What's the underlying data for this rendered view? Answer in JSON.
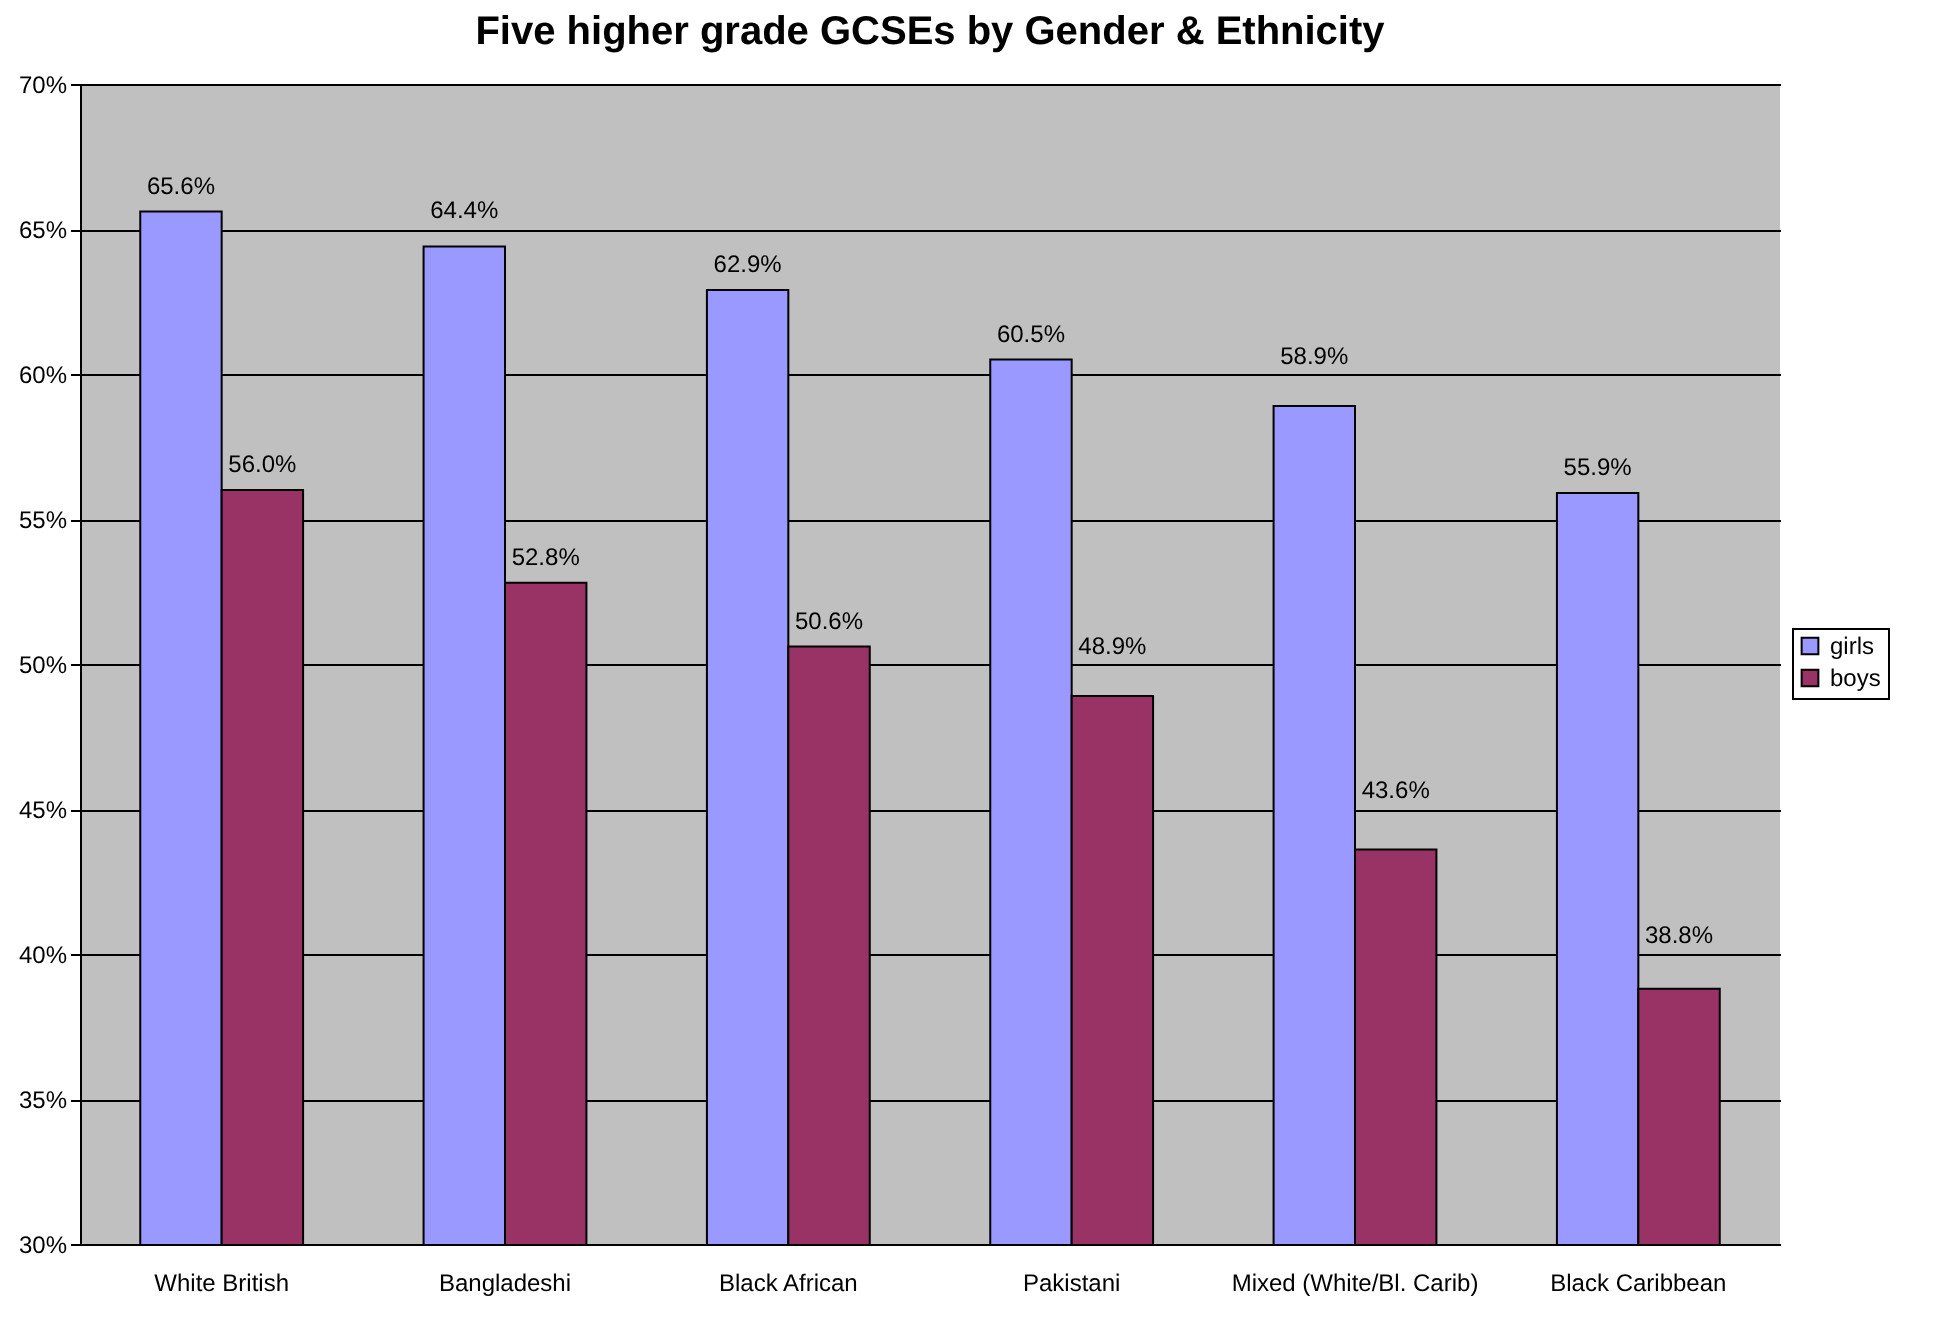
{
  "chart_data": {
    "type": "bar",
    "title": "Five higher grade GCSEs by Gender & Ethnicity",
    "categories": [
      "White British",
      "Bangladeshi",
      "Black African",
      "Pakistani",
      "Mixed (White/Bl. Carib)",
      "Black Caribbean"
    ],
    "series": [
      {
        "name": "girls",
        "color": "#9999ff",
        "values": [
          65.6,
          64.4,
          62.9,
          60.5,
          58.9,
          55.9
        ],
        "value_labels": [
          "65.6%",
          "64.4%",
          "62.9%",
          "60.5%",
          "58.9%",
          "55.9%"
        ]
      },
      {
        "name": "boys",
        "color": "#993366",
        "values": [
          56.0,
          52.8,
          50.6,
          48.9,
          43.6,
          38.8
        ],
        "value_labels": [
          "56.0%",
          "52.8%",
          "50.6%",
          "48.9%",
          "43.6%",
          "38.8%"
        ]
      }
    ],
    "ylim": [
      30,
      70
    ],
    "yticks": [
      {
        "value": 30,
        "label": "30%"
      },
      {
        "value": 35,
        "label": "35%"
      },
      {
        "value": 40,
        "label": "40%"
      },
      {
        "value": 45,
        "label": "45%"
      },
      {
        "value": 50,
        "label": "50%"
      },
      {
        "value": 55,
        "label": "55%"
      },
      {
        "value": 60,
        "label": "60%"
      },
      {
        "value": 65,
        "label": "65%"
      },
      {
        "value": 70,
        "label": "70%"
      }
    ],
    "grid": "y",
    "legend": "right"
  }
}
